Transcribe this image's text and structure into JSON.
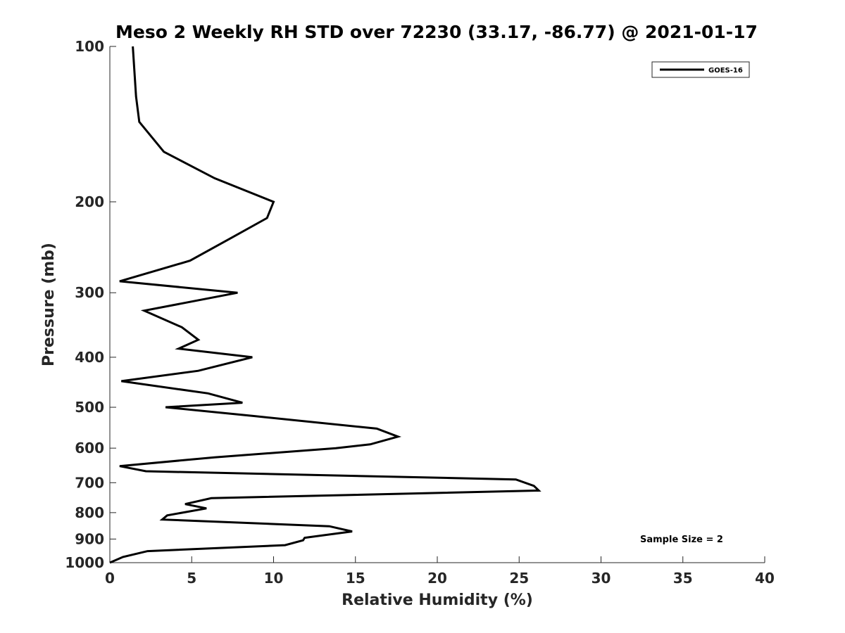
{
  "chart_data": {
    "type": "line",
    "title": "Meso 2 Weekly RH STD over 72230 (33.17, -86.77) @ 2021-01-17",
    "xlabel": "Relative Humidity (%)",
    "ylabel": "Pressure (mb)",
    "xlim": [
      0,
      40
    ],
    "ylim": [
      100,
      1000
    ],
    "yscale": "log",
    "y_reversed": true,
    "grid": false,
    "xticks": [
      0,
      5,
      10,
      15,
      20,
      25,
      30,
      35,
      40
    ],
    "yticks": [
      100,
      200,
      300,
      400,
      500,
      600,
      700,
      800,
      900,
      1000
    ],
    "legend": {
      "position": "top-right",
      "entries": [
        "GOES-16"
      ]
    },
    "annotations": [
      {
        "text": "Sample Size = 2",
        "position": "bottom-right"
      }
    ],
    "series": [
      {
        "name": "GOES-16",
        "x": [
          1.4,
          1.6,
          1.8,
          3.3,
          6.4,
          10.0,
          9.6,
          7.4,
          4.9,
          0.6,
          7.8,
          2.1,
          4.4,
          5.4,
          4.2,
          8.7,
          5.4,
          0.7,
          6.0,
          8.1,
          3.4,
          8.8,
          16.3,
          17.6,
          15.9,
          13.8,
          6.4,
          0.6,
          2.2,
          24.8,
          25.9,
          26.2,
          6.2,
          4.6,
          5.9,
          3.5,
          3.2,
          13.4,
          14.8,
          11.9,
          11.8,
          10.7,
          2.3,
          0.8,
          0.0
        ],
        "y": [
          100,
          125,
          140,
          160,
          180,
          200,
          215,
          235,
          260,
          285,
          300,
          325,
          350,
          370,
          385,
          400,
          425,
          445,
          470,
          490,
          500,
          520,
          550,
          570,
          590,
          600,
          625,
          650,
          665,
          690,
          710,
          725,
          750,
          770,
          785,
          810,
          825,
          850,
          870,
          895,
          905,
          925,
          950,
          975,
          1000
        ]
      }
    ]
  }
}
